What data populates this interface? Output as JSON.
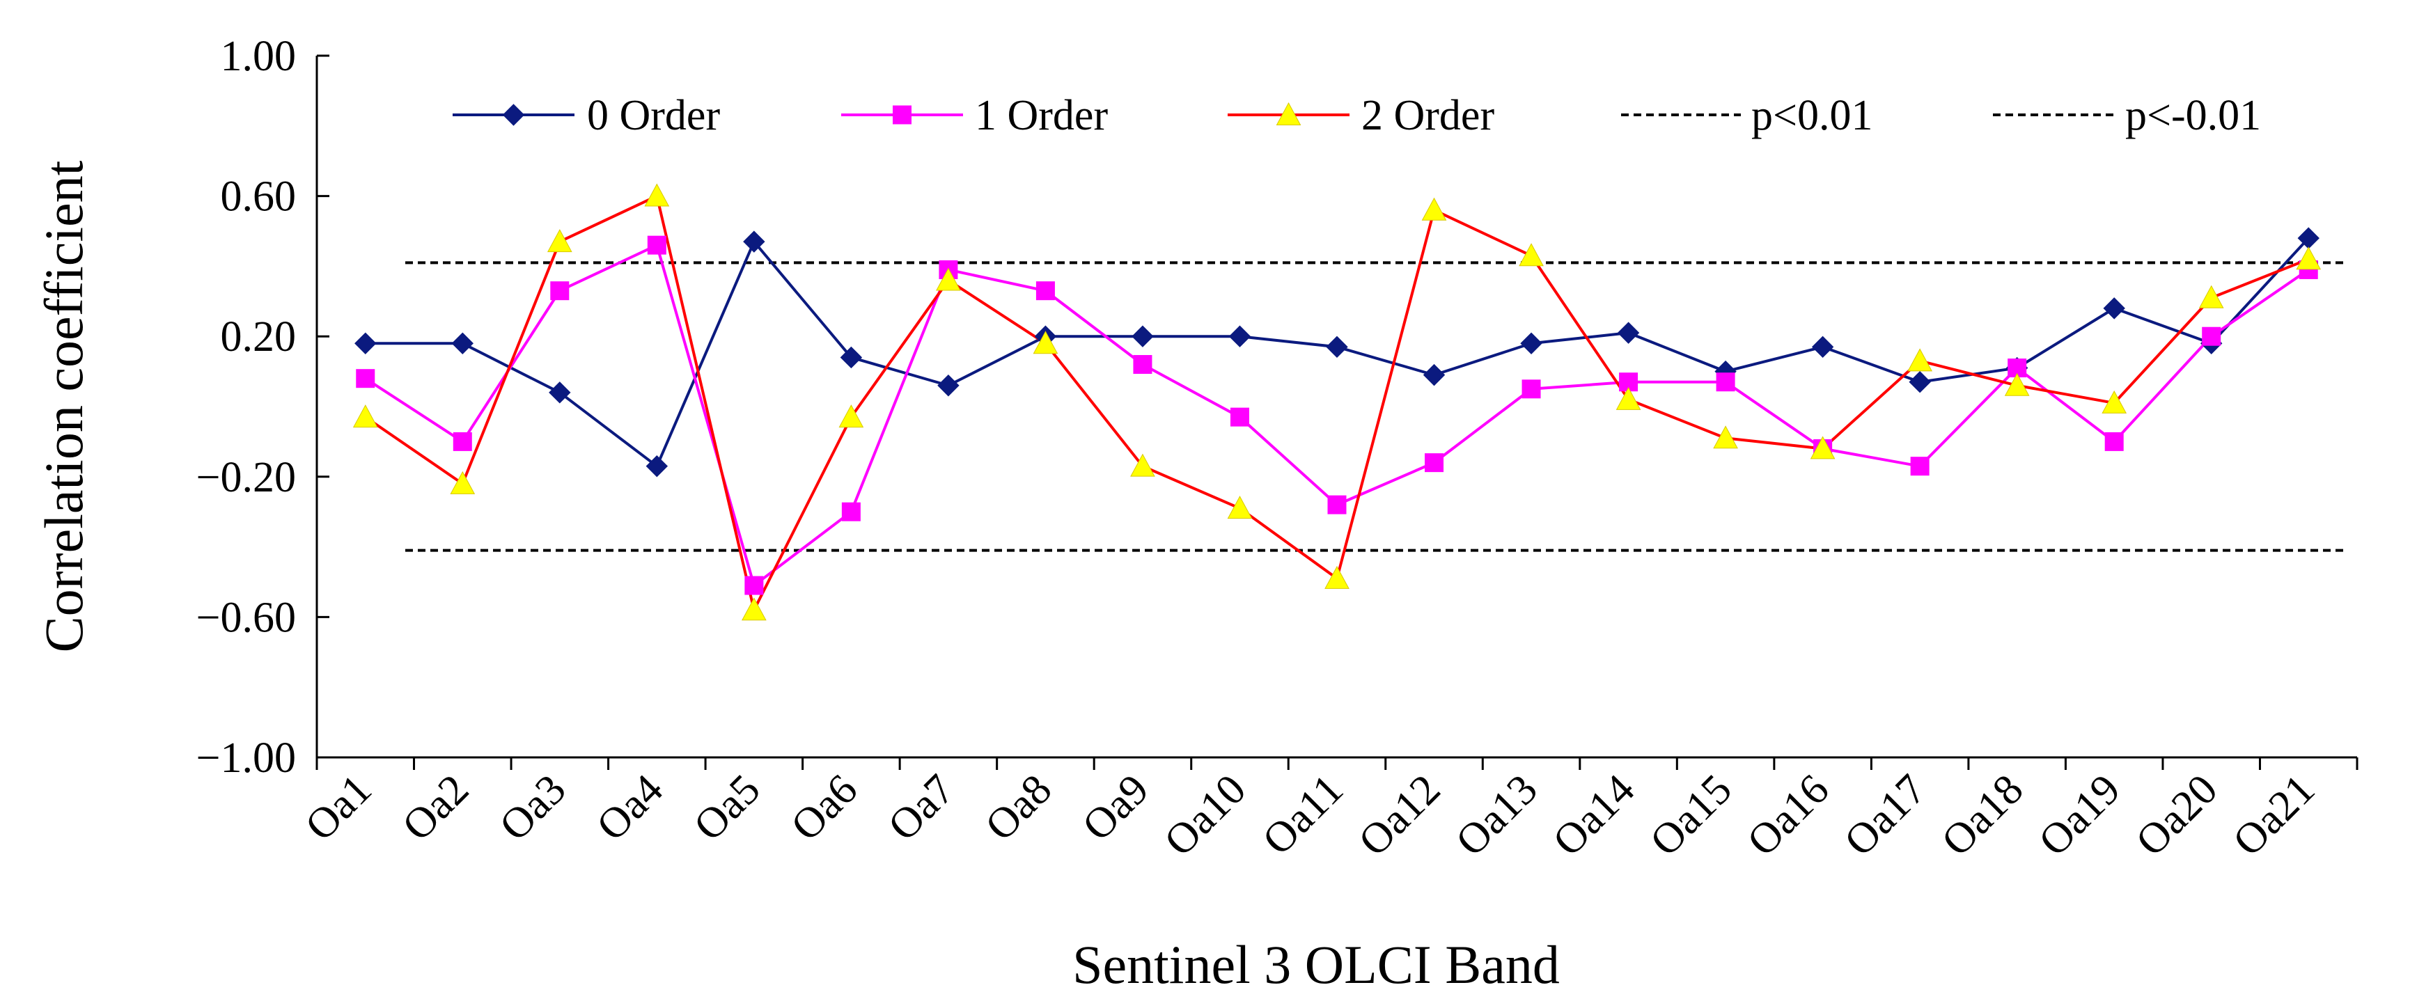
{
  "chart_data": {
    "type": "line",
    "title": "",
    "xlabel": "Sentinel 3 OLCI Band",
    "ylabel": "Correlation coefficient",
    "ylim": [
      -1.0,
      1.0
    ],
    "yticks": [
      "1.00",
      "0.60",
      "0.20",
      "−0.20",
      "−0.60",
      "−1.00"
    ],
    "ytick_values": [
      1.0,
      0.6,
      0.2,
      -0.2,
      -0.6,
      -1.0
    ],
    "categories": [
      "Oa1",
      "Oa2",
      "Oa3",
      "Oa4",
      "Oa5",
      "Oa6",
      "Oa7",
      "Oa8",
      "Oa9",
      "Oa10",
      "Oa11",
      "Oa12",
      "Oa13",
      "Oa14",
      "Oa15",
      "Oa16",
      "Oa17",
      "Oa18",
      "Oa19",
      "Oa20",
      "Oa21"
    ],
    "legend_position": "top",
    "series": [
      {
        "name": "0 Order",
        "color": "#0b1a7f",
        "marker": "diamond",
        "values": [
          0.18,
          0.18,
          0.04,
          -0.17,
          0.47,
          0.14,
          0.06,
          0.2,
          0.2,
          0.2,
          0.17,
          0.09,
          0.18,
          0.21,
          0.1,
          0.17,
          0.07,
          0.11,
          0.28,
          0.18,
          0.48
        ]
      },
      {
        "name": "1 Order",
        "color": "#ff00ff",
        "marker": "square",
        "values": [
          0.08,
          -0.1,
          0.33,
          0.46,
          -0.51,
          -0.3,
          0.39,
          0.33,
          0.12,
          -0.03,
          -0.28,
          -0.16,
          0.05,
          0.07,
          0.07,
          -0.12,
          -0.17,
          0.11,
          -0.1,
          0.2,
          0.39
        ]
      },
      {
        "name": "2 Order",
        "color": "#ff0000",
        "marker": "triangle",
        "markerFill": "#ffff00",
        "values": [
          -0.03,
          -0.22,
          0.47,
          0.6,
          -0.58,
          -0.03,
          0.36,
          0.18,
          -0.17,
          -0.29,
          -0.49,
          0.56,
          0.43,
          0.02,
          -0.09,
          -0.12,
          0.13,
          0.06,
          0.01,
          0.31,
          0.42
        ]
      }
    ],
    "reference_lines": [
      {
        "name": "p<0.01",
        "value": 0.41,
        "style": "dashed",
        "color": "#000000"
      },
      {
        "name": "p<-0.01",
        "value": -0.41,
        "style": "dashed",
        "color": "#000000"
      }
    ]
  }
}
